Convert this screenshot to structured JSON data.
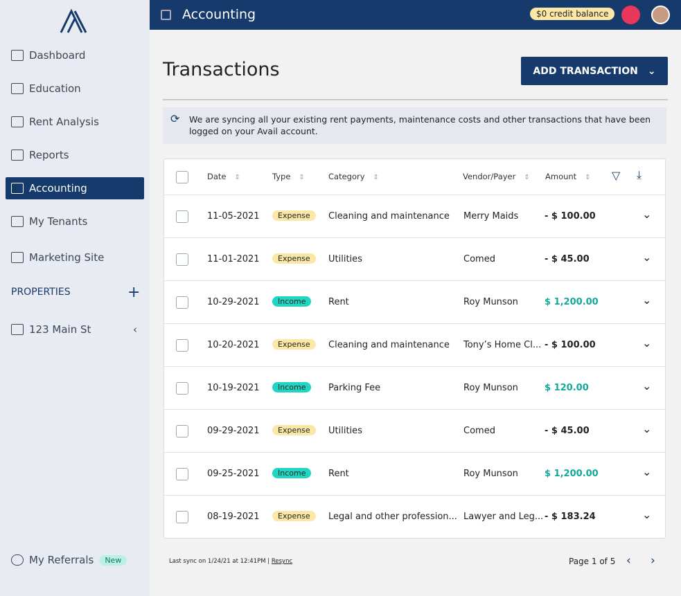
{
  "sidebar": {
    "nav": [
      "Dashboard",
      "Education",
      "Rent Analysis",
      "Reports",
      "Accounting",
      "My Tenants",
      "Marketing Site"
    ],
    "properties_heading": "PROPERTIES",
    "property": "123 Main St",
    "referrals": "My Referrals",
    "referrals_badge": "New"
  },
  "topbar": {
    "title": "Accounting",
    "credit": "$0 credit balance"
  },
  "page": {
    "title": "Transactions",
    "add_button": "ADD TRANSACTION",
    "sync_notice": "We are syncing all your existing rent payments, maintenance costs and other transactions that have been logged on your Avail account."
  },
  "table": {
    "columns": [
      "Date",
      "Type",
      "Category",
      "Vendor/Payer",
      "Amount"
    ],
    "rows": [
      {
        "date": "11-05-2021",
        "type": "Expense",
        "category": "Cleaning and maintenance",
        "vendor": "Merry Maids",
        "amount": "- $ 100.00",
        "type_color": "#fbe7a6",
        "amount_color": "#222222"
      },
      {
        "date": "11-01-2021",
        "type": "Expense",
        "category": "Utilities",
        "vendor": "Comed",
        "amount": "- $ 45.00",
        "type_color": "#fbe7a6",
        "amount_color": "#222222"
      },
      {
        "date": "10-29-2021",
        "type": "Income",
        "category": "Rent",
        "vendor": "Roy Munson",
        "amount": "$ 1,200.00",
        "type_color": "#1fd6c2",
        "amount_color": "#13a99a"
      },
      {
        "date": "10-20-2021",
        "type": "Expense",
        "category": "Cleaning and maintenance",
        "vendor": "Tony’s Home Cl...",
        "amount": "- $ 100.00",
        "type_color": "#fbe7a6",
        "amount_color": "#222222"
      },
      {
        "date": "10-19-2021",
        "type": "Income",
        "category": "Parking Fee",
        "vendor": "Roy Munson",
        "amount": "$ 120.00",
        "type_color": "#1fd6c2",
        "amount_color": "#13a99a"
      },
      {
        "date": "09-29-2021",
        "type": "Expense",
        "category": "Utilities",
        "vendor": "Comed",
        "amount": "- $ 45.00",
        "type_color": "#fbe7a6",
        "amount_color": "#222222"
      },
      {
        "date": "09-25-2021",
        "type": "Income",
        "category": "Rent",
        "vendor": "Roy Munson",
        "amount": "$ 1,200.00",
        "type_color": "#1fd6c2",
        "amount_color": "#13a99a"
      },
      {
        "date": "08-19-2021",
        "type": "Expense",
        "category": "Legal and other profession...",
        "vendor": "Lawyer and Leg...",
        "amount": "- $ 183.24",
        "type_color": "#fbe7a6",
        "amount_color": "#222222"
      }
    ]
  },
  "footer": {
    "last_sync": "Last sync on 1/24/21 at 12:41PM |",
    "resync": "Resync",
    "pagination": "Page 1 of 5"
  }
}
